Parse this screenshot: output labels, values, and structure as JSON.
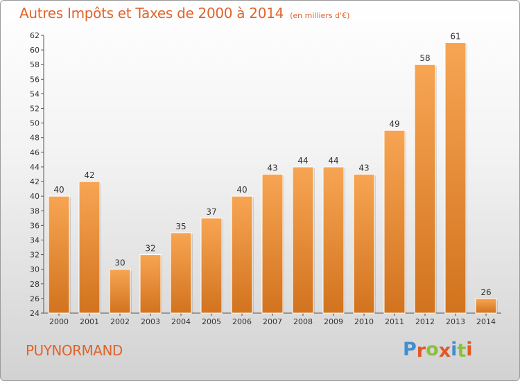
{
  "header": {
    "title": "Autres Impôts et Taxes de 2000 à 2014",
    "subtitle": "(en milliers d'€)"
  },
  "footer": {
    "commune": "PUYNORMAND",
    "logo": "Proxiti",
    "logo_letters": [
      {
        "ch": "P",
        "color": "#3f8fcf"
      },
      {
        "ch": "r",
        "color": "#e2582a"
      },
      {
        "ch": "o",
        "color": "#8dbf3f"
      },
      {
        "ch": "x",
        "color": "#e2582a"
      },
      {
        "ch": "i",
        "color": "#3f8fcf"
      },
      {
        "ch": "t",
        "color": "#8dbf3f"
      },
      {
        "ch": "i",
        "color": "#e2582a"
      }
    ]
  },
  "colors": {
    "bar_top": "#f7a553",
    "bar_bottom": "#d2731e",
    "text_accent": "#e0632b"
  },
  "chart_data": {
    "type": "bar",
    "categories": [
      "2000",
      "2001",
      "2002",
      "2003",
      "2004",
      "2005",
      "2006",
      "2007",
      "2008",
      "2009",
      "2010",
      "2011",
      "2012",
      "2013",
      "2014"
    ],
    "values": [
      40,
      42,
      30,
      32,
      35,
      37,
      40,
      43,
      44,
      44,
      43,
      49,
      58,
      61,
      26
    ],
    "ylim": [
      24,
      62
    ],
    "ytick_step": 2,
    "grid": false,
    "data_labels": true
  }
}
